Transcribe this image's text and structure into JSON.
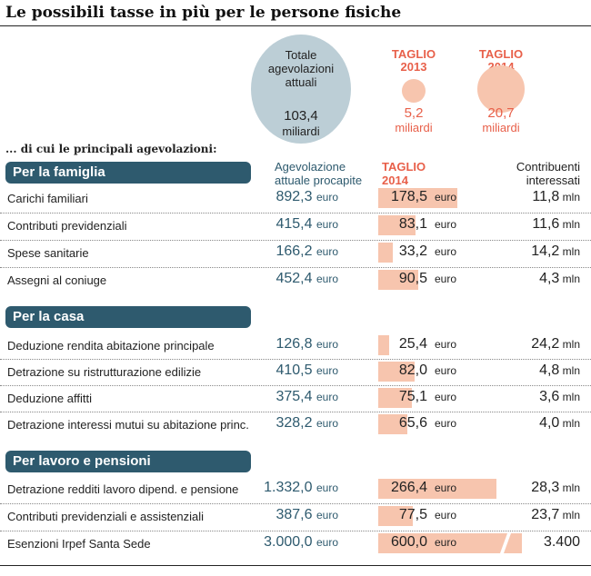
{
  "title": "Le possibili tasse in più per le persone fisiche",
  "summary": {
    "totale_label": "Totale agevolazioni attuali",
    "totale_value": "103,4",
    "totale_unit": "miliardi",
    "taglio2013_label1": "TAGLIO",
    "taglio2013_label2": "2013",
    "taglio2013_value": "5,2",
    "taglio2013_unit": "miliardi",
    "taglio2014_label1": "TAGLIO",
    "taglio2014_label2": "2014",
    "taglio2014_value": "20,7",
    "taglio2014_unit": "miliardi",
    "colors": {
      "bubble_total": "#bcced6",
      "bubble_cut": "#f7c5ae",
      "accent": "#e8604a",
      "section": "#2e5a6e"
    }
  },
  "subtitle": "... di cui le principali agevolazioni:",
  "headers": {
    "agevolazione_1": "Agevolazione",
    "agevolazione_2": "attuale procapite",
    "taglio_1": "TAGLIO",
    "taglio_2": "2014",
    "contribuenti_1": "Contribuenti",
    "contribuenti_2": "interessati"
  },
  "unit_euro": "euro",
  "unit_mln": "mln",
  "sections": [
    {
      "name": "Per la famiglia",
      "rows": [
        {
          "label": "Carichi familiari",
          "procapite": "892,3",
          "taglio": "178,5",
          "contribuenti": "11,8"
        },
        {
          "label": "Contributi previdenziali",
          "procapite": "415,4",
          "taglio": "83,1",
          "contribuenti": "11,6"
        },
        {
          "label": "Spese sanitarie",
          "procapite": "166,2",
          "taglio": "33,2",
          "contribuenti": "14,2"
        },
        {
          "label": "Assegni al coniuge",
          "procapite": "452,4",
          "taglio": "90,5",
          "contribuenti": "4,3"
        }
      ]
    },
    {
      "name": "Per la casa",
      "rows": [
        {
          "label": "Deduzione rendita abitazione principale",
          "procapite": "126,8",
          "taglio": "25,4",
          "contribuenti": "24,2"
        },
        {
          "label": "Detrazione su ristrutturazione edilizie",
          "procapite": "410,5",
          "taglio": "82,0",
          "contribuenti": "4,8"
        },
        {
          "label": "Deduzione affitti",
          "procapite": "375,4",
          "taglio": "75,1",
          "contribuenti": "3,6"
        },
        {
          "label": "Detrazione interessi mutui su abitazione princ.",
          "procapite": "328,2",
          "taglio": "65,6",
          "contribuenti": "4,0"
        }
      ]
    },
    {
      "name": "Per lavoro e pensioni",
      "rows": [
        {
          "label": "Detrazione redditi lavoro dipend. e pensione",
          "procapite": "1.332,0",
          "taglio": "266,4",
          "contribuenti": "28,3"
        },
        {
          "label": "Contributi previdenziali e assistenziali",
          "procapite": "387,6",
          "taglio": "77,5",
          "contribuenti": "23,7"
        },
        {
          "label": "Esenzioni Irpef Santa Sede",
          "procapite": "3.000,0",
          "taglio": "600,0",
          "contribuenti": "3.400"
        }
      ]
    }
  ],
  "chart_data": {
    "type": "bar",
    "title": "Le possibili tasse in più per le persone fisiche",
    "categories": [
      "Carichi familiari",
      "Contributi previdenziali",
      "Spese sanitarie",
      "Assegni al coniuge",
      "Deduzione rendita abitazione principale",
      "Detrazione su ristrutturazione edilizie",
      "Deduzione affitti",
      "Detrazione interessi mutui su abitazione princ.",
      "Detrazione redditi lavoro dipend. e pensione",
      "Contributi previdenziali e assistenziali",
      "Esenzioni Irpef Santa Sede"
    ],
    "series": [
      {
        "name": "TAGLIO 2014",
        "values": [
          178.5,
          83.1,
          33.2,
          90.5,
          25.4,
          82.0,
          75.1,
          65.6,
          266.4,
          77.5,
          600.0
        ]
      }
    ],
    "bubbles": [
      {
        "name": "Totale agevolazioni attuali",
        "value": 103.4
      },
      {
        "name": "TAGLIO 2013",
        "value": 5.2
      },
      {
        "name": "TAGLIO 2014",
        "value": 20.7
      }
    ],
    "broken_bar": "Esenzioni Irpef Santa Sede"
  }
}
